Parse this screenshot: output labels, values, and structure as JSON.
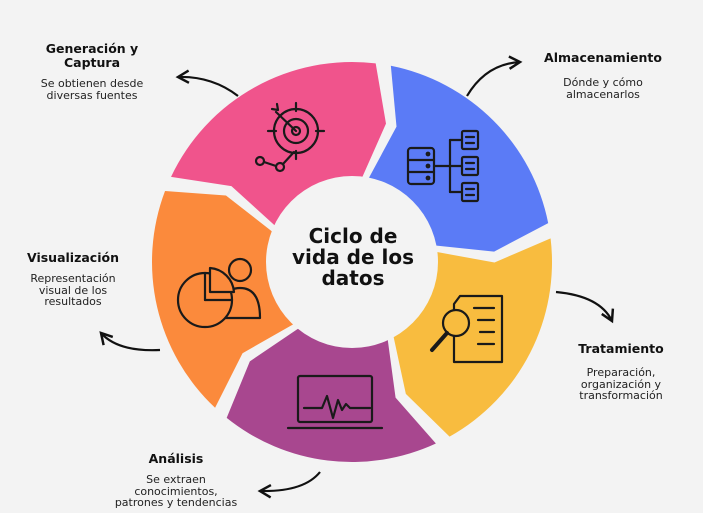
{
  "center_title": {
    "line1": "Ciclo de",
    "line2": "vida de los",
    "line3": "datos"
  },
  "stages": [
    {
      "title_line1": "Generación y",
      "title_line2": "Captura",
      "desc_line1": "Se obtienen desde",
      "desc_line2": "diversas fuentes",
      "color": "#F0548C",
      "icon": "target-icon"
    },
    {
      "title": "Almacenamiento",
      "desc_line1": "Dónde y cómo",
      "desc_line2": "almacenarlos",
      "color": "#5B7BF6",
      "icon": "server-icon"
    },
    {
      "title": "Tratamiento",
      "desc_line1": "Preparación,",
      "desc_line2": "organización y",
      "desc_line3": "transformación",
      "color": "#F8BC3F",
      "icon": "document-search-icon"
    },
    {
      "title": "Análisis",
      "desc_line1": "Se extraen",
      "desc_line2": "conocimientos,",
      "desc_line3": "patrones y tendencias",
      "color": "#A8478F",
      "icon": "monitor-chart-icon"
    },
    {
      "title": "Visualización",
      "desc_line1": "Representación",
      "desc_line2": "visual de los",
      "desc_line3": "resultados",
      "color": "#FB8A3C",
      "icon": "pie-user-icon"
    }
  ]
}
